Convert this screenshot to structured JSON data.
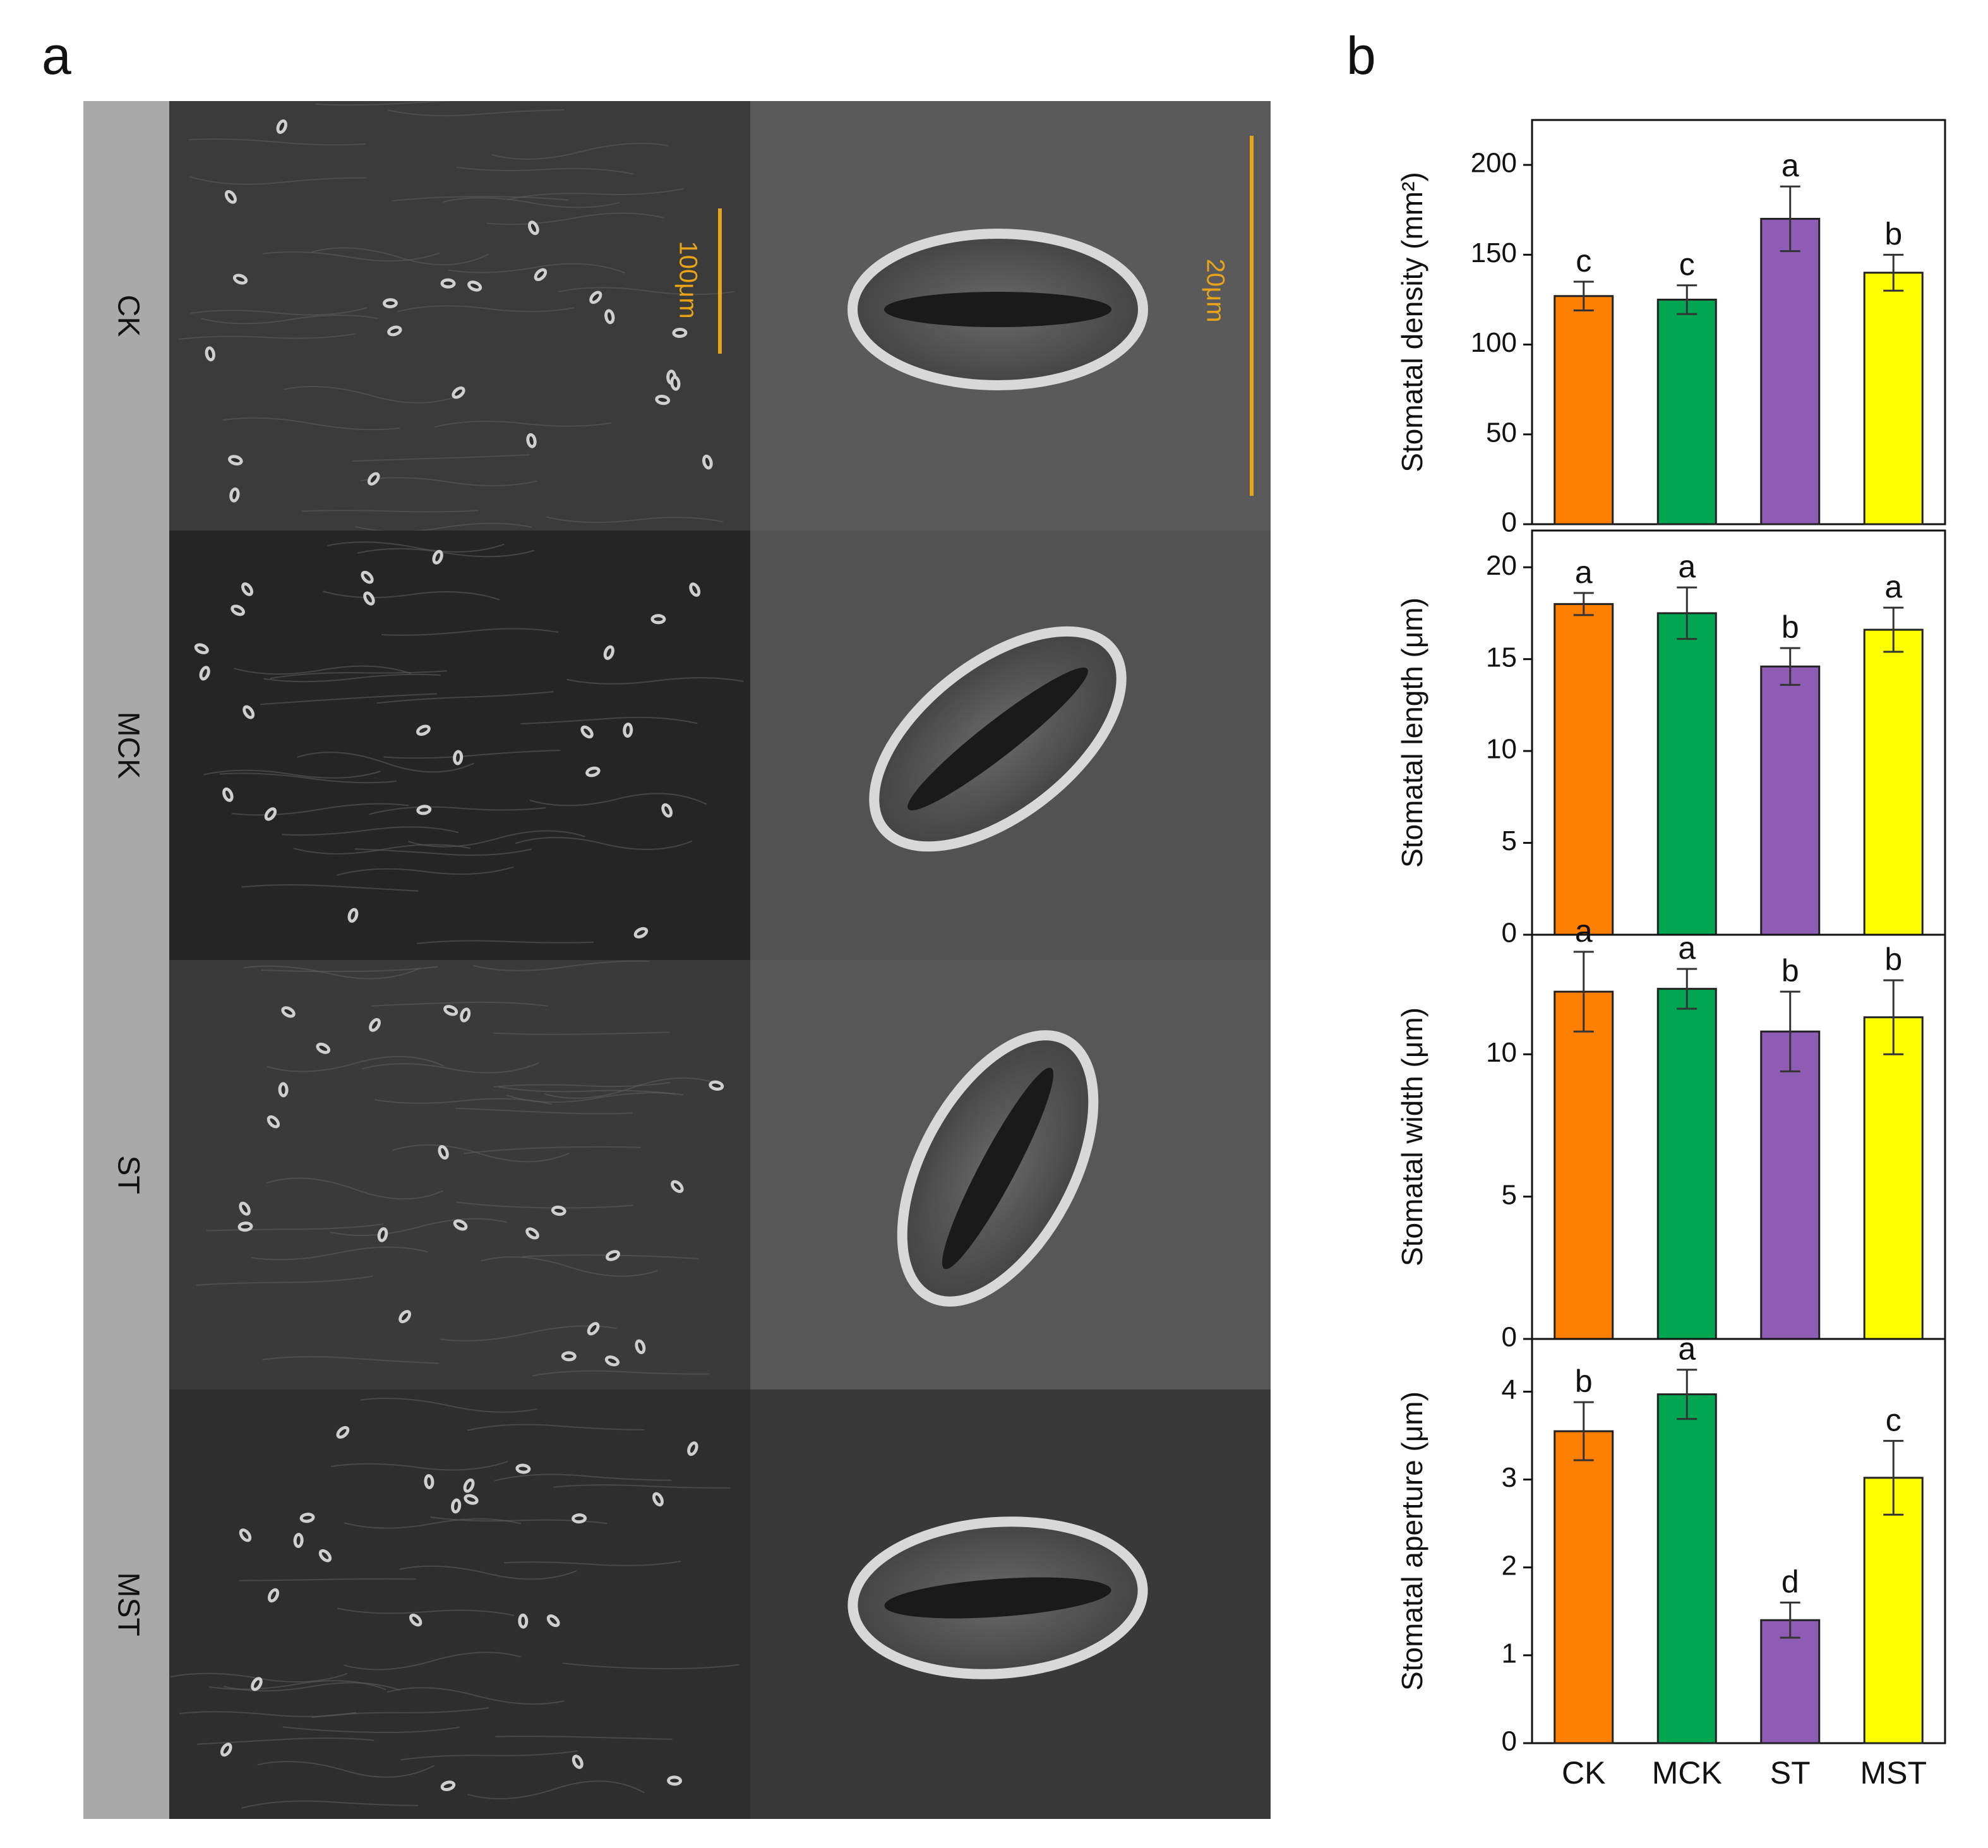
{
  "panel_a": {
    "letter": "a",
    "row_labels": [
      "CK",
      "MCK",
      "ST",
      "MST"
    ],
    "scale_bars": {
      "low_mag": "100μm",
      "high_mag": "20μm"
    },
    "scale_color": "#E8A317",
    "strip_color": "#a9a9a9"
  },
  "panel_b": {
    "letter": "b"
  },
  "chart_data": [
    {
      "type": "bar",
      "categories": [
        "CK",
        "MCK",
        "ST",
        "MST"
      ],
      "values": [
        127,
        125,
        170,
        140
      ],
      "errors": [
        8,
        8,
        18,
        10
      ],
      "letters": [
        "c",
        "c",
        "a",
        "b"
      ],
      "ylabel": "Stomatal density (mm²)",
      "ylim": [
        0,
        225
      ],
      "yticks": [
        0,
        50,
        100,
        150,
        200
      ],
      "colors": [
        "#FF7F00",
        "#00A651",
        "#8E5BB5",
        "#FFFF00"
      ]
    },
    {
      "type": "bar",
      "categories": [
        "CK",
        "MCK",
        "ST",
        "MST"
      ],
      "values": [
        18.0,
        17.5,
        14.6,
        16.6
      ],
      "errors": [
        0.6,
        1.4,
        1.0,
        1.2
      ],
      "letters": [
        "a",
        "a",
        "b",
        "a"
      ],
      "ylabel": "Stomatal length (μm)",
      "ylim": [
        0,
        22
      ],
      "yticks": [
        0,
        5,
        10,
        15,
        20
      ],
      "colors": [
        "#FF7F00",
        "#00A651",
        "#8E5BB5",
        "#FFFF00"
      ]
    },
    {
      "type": "bar",
      "categories": [
        "CK",
        "MCK",
        "ST",
        "MST"
      ],
      "values": [
        12.2,
        12.3,
        10.8,
        11.3
      ],
      "errors": [
        1.4,
        0.7,
        1.4,
        1.3
      ],
      "letters": [
        "a",
        "a",
        "b",
        "b"
      ],
      "ylabel": "Stomatal width (μm)",
      "ylim": [
        0,
        14.2
      ],
      "yticks": [
        0,
        5,
        10
      ],
      "colors": [
        "#FF7F00",
        "#00A651",
        "#8E5BB5",
        "#FFFF00"
      ]
    },
    {
      "type": "bar",
      "categories": [
        "CK",
        "MCK",
        "ST",
        "MST"
      ],
      "values": [
        3.55,
        3.97,
        1.4,
        3.02
      ],
      "errors": [
        0.33,
        0.28,
        0.2,
        0.42
      ],
      "letters": [
        "b",
        "a",
        "d",
        "c"
      ],
      "ylabel": "Stomatal aperture (μm)",
      "ylim": [
        0,
        4.6
      ],
      "yticks": [
        0,
        1,
        2,
        3,
        4
      ],
      "colors": [
        "#FF7F00",
        "#00A651",
        "#8E5BB5",
        "#FFFF00"
      ]
    }
  ]
}
